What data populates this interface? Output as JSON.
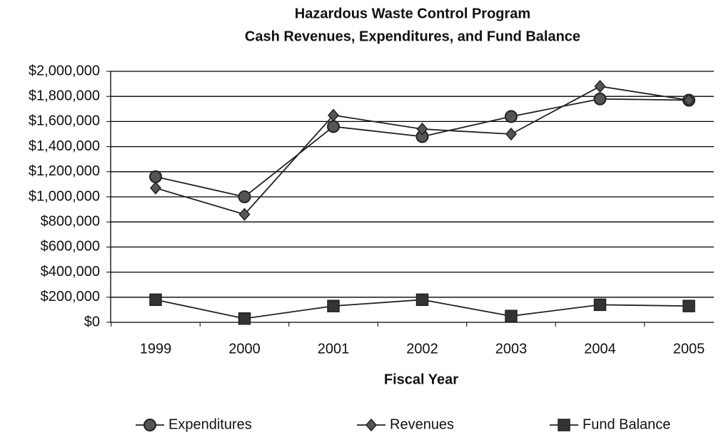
{
  "chart_data": {
    "type": "line",
    "title": "Hazardous Waste Control Program",
    "subtitle": "Cash Revenues, Expenditures, and Fund Balance",
    "x_label": "Fiscal Year",
    "categories": [
      "1999",
      "2000",
      "2001",
      "2002",
      "2003",
      "2004",
      "2005"
    ],
    "series": [
      {
        "name": "Expenditures",
        "color": "#222222",
        "marker": "circle",
        "values": [
          1160000,
          1000000,
          1560000,
          1480000,
          1640000,
          1780000,
          1770000
        ]
      },
      {
        "name": "Revenues",
        "color": "#222222",
        "marker": "diamond",
        "values": [
          1070000,
          860000,
          1650000,
          1540000,
          1500000,
          1880000,
          1770000
        ]
      },
      {
        "name": "Fund Balance",
        "color": "#222222",
        "marker": "square",
        "values": [
          180000,
          30000,
          130000,
          180000,
          50000,
          140000,
          130000
        ]
      }
    ],
    "ylim": [
      0,
      2000000
    ],
    "yticks": [
      {
        "value": 0,
        "label": "$0"
      },
      {
        "value": 200000,
        "label": "$200,000"
      },
      {
        "value": 400000,
        "label": "$400,000"
      },
      {
        "value": 600000,
        "label": "$600,000"
      },
      {
        "value": 800000,
        "label": "$800,000"
      },
      {
        "value": 1000000,
        "label": "$1,000,000"
      },
      {
        "value": 1200000,
        "label": "$1,200,000"
      },
      {
        "value": 1400000,
        "label": "$1,400,000"
      },
      {
        "value": 1600000,
        "label": "$1,600,000"
      },
      {
        "value": 1800000,
        "label": "$1,800,000"
      },
      {
        "value": 2000000,
        "label": "$2,000,000"
      }
    ],
    "grid": true,
    "legend": "bottom"
  }
}
